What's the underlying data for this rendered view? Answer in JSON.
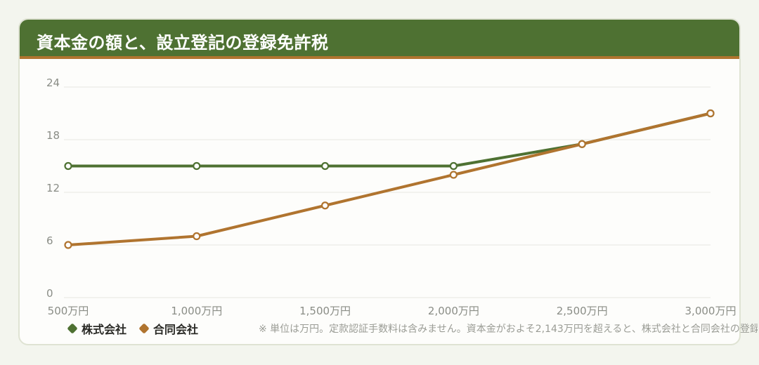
{
  "header": {
    "title": "資本金の額と、設立登記の登録免許税"
  },
  "note": "※ 単位は万円。定款認証手数料は含みません。資本金がおよそ2,143万円を超えると、株式会社と合同会社の登録免許税は同額になります。",
  "colors": {
    "header_bg": "#4e7132",
    "header_border": "#b0742f",
    "kabushiki": "#4e7132",
    "godo": "#b0742f"
  },
  "chart_data": {
    "type": "line",
    "title": "資本金の額と、設立登記の登録免許税",
    "xlabel": "",
    "ylabel": "",
    "categories": [
      "500万円",
      "1,000万円",
      "1,500万円",
      "2,000万円",
      "2,500万円",
      "3,000万円"
    ],
    "y_ticks": [
      "0",
      "6",
      "12",
      "18",
      "24"
    ],
    "ylim": [
      0,
      24
    ],
    "grid": true,
    "legend_position": "bottom-left",
    "series": [
      {
        "name": "株式会社",
        "color": "#4e7132",
        "values": [
          15,
          15,
          15,
          15,
          17.5,
          21
        ]
      },
      {
        "name": "合同会社",
        "color": "#b0742f",
        "values": [
          6,
          7,
          10.5,
          14,
          17.5,
          21
        ]
      }
    ]
  }
}
